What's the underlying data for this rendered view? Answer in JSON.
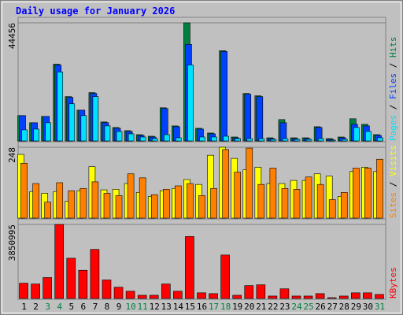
{
  "chart_data": [
    {
      "type": "bar",
      "title": "Daily usage for January 2026",
      "ylim": [
        0,
        44456
      ],
      "yticks": [
        44456
      ],
      "series": [
        {
          "name": "Hits",
          "color": "#008040",
          "values": [
            9550,
            6860,
            9250,
            28900,
            16700,
            11600,
            18200,
            7150,
            5070,
            3880,
            2380,
            1790,
            12500,
            5660,
            44456,
            4770,
            2980,
            33970,
            1490,
            17880,
            16990,
            1190,
            8050,
            1190,
            1190,
            5360,
            890,
            1490,
            8350,
            6260,
            2380
          ]
        },
        {
          "name": "Files",
          "color": "#0040ff",
          "values": [
            9550,
            6860,
            9250,
            28600,
            16400,
            11600,
            17900,
            6860,
            4770,
            3580,
            2090,
            1490,
            12200,
            5360,
            36360,
            4470,
            2680,
            33670,
            1190,
            17580,
            16700,
            890,
            6860,
            890,
            890,
            5070,
            600,
            1190,
            6260,
            5660,
            2090
          ]
        },
        {
          "name": "Pages",
          "color": "#00e0ff",
          "values": [
            4180,
            4470,
            6860,
            25960,
            14000,
            9550,
            16700,
            5670,
            3580,
            2680,
            1490,
            890,
            2380,
            1190,
            28600,
            1490,
            1490,
            1790,
            890,
            890,
            890,
            600,
            890,
            600,
            600,
            890,
            300,
            600,
            5070,
            3580,
            1190
          ]
        }
      ]
    },
    {
      "type": "bar",
      "ylim": [
        0,
        248
      ],
      "yticks": [
        248
      ],
      "series": [
        {
          "name": "Visits",
          "color": "#ffff00",
          "values": [
            223,
            93,
            87,
            93,
            59,
            96,
            180,
            99,
            101,
            121,
            90,
            76,
            96,
            104,
            135,
            118,
            220,
            248,
            209,
            169,
            178,
            121,
            121,
            132,
            132,
            155,
            147,
            76,
            163,
            178,
            163
          ]
        },
        {
          "name": "Sites",
          "color": "#ff8000",
          "values": [
            192,
            121,
            56,
            124,
            96,
            104,
            127,
            87,
            79,
            155,
            141,
            82,
            101,
            113,
            121,
            79,
            104,
            240,
            161,
            245,
            118,
            175,
            104,
            101,
            144,
            118,
            65,
            90,
            175,
            175,
            206
          ]
        }
      ]
    },
    {
      "type": "bar",
      "ylim": [
        0,
        3850995
      ],
      "yticks": [
        3850995
      ],
      "categories": [
        "1",
        "2",
        "3",
        "4",
        "5",
        "6",
        "7",
        "8",
        "9",
        "10",
        "11",
        "12",
        "13",
        "14",
        "15",
        "16",
        "17",
        "18",
        "19",
        "20",
        "21",
        "22",
        "23",
        "24",
        "25",
        "26",
        "27",
        "28",
        "29",
        "30",
        "31"
      ],
      "category_colors": [
        "#000000",
        "#000000",
        "#008040",
        "#008040",
        "#000000",
        "#000000",
        "#000000",
        "#000000",
        "#000000",
        "#008040",
        "#008040",
        "#000000",
        "#000000",
        "#000000",
        "#000000",
        "#000000",
        "#008040",
        "#008040",
        "#000000",
        "#000000",
        "#000000",
        "#000000",
        "#000000",
        "#008040",
        "#008040",
        "#000000",
        "#000000",
        "#000000",
        "#000000",
        "#000000",
        "#008040"
      ],
      "series": [
        {
          "name": "KBytes",
          "color": "#ff0000",
          "values": [
            795000,
            753000,
            1088000,
            3850995,
            2093000,
            1465000,
            2553000,
            963000,
            586000,
            377000,
            167000,
            167000,
            753000,
            377000,
            3223000,
            293000,
            251000,
            2260000,
            167000,
            670000,
            712000,
            126000,
            502000,
            126000,
            126000,
            251000,
            42000,
            126000,
            293000,
            293000,
            209000
          ]
        }
      ]
    }
  ]
}
